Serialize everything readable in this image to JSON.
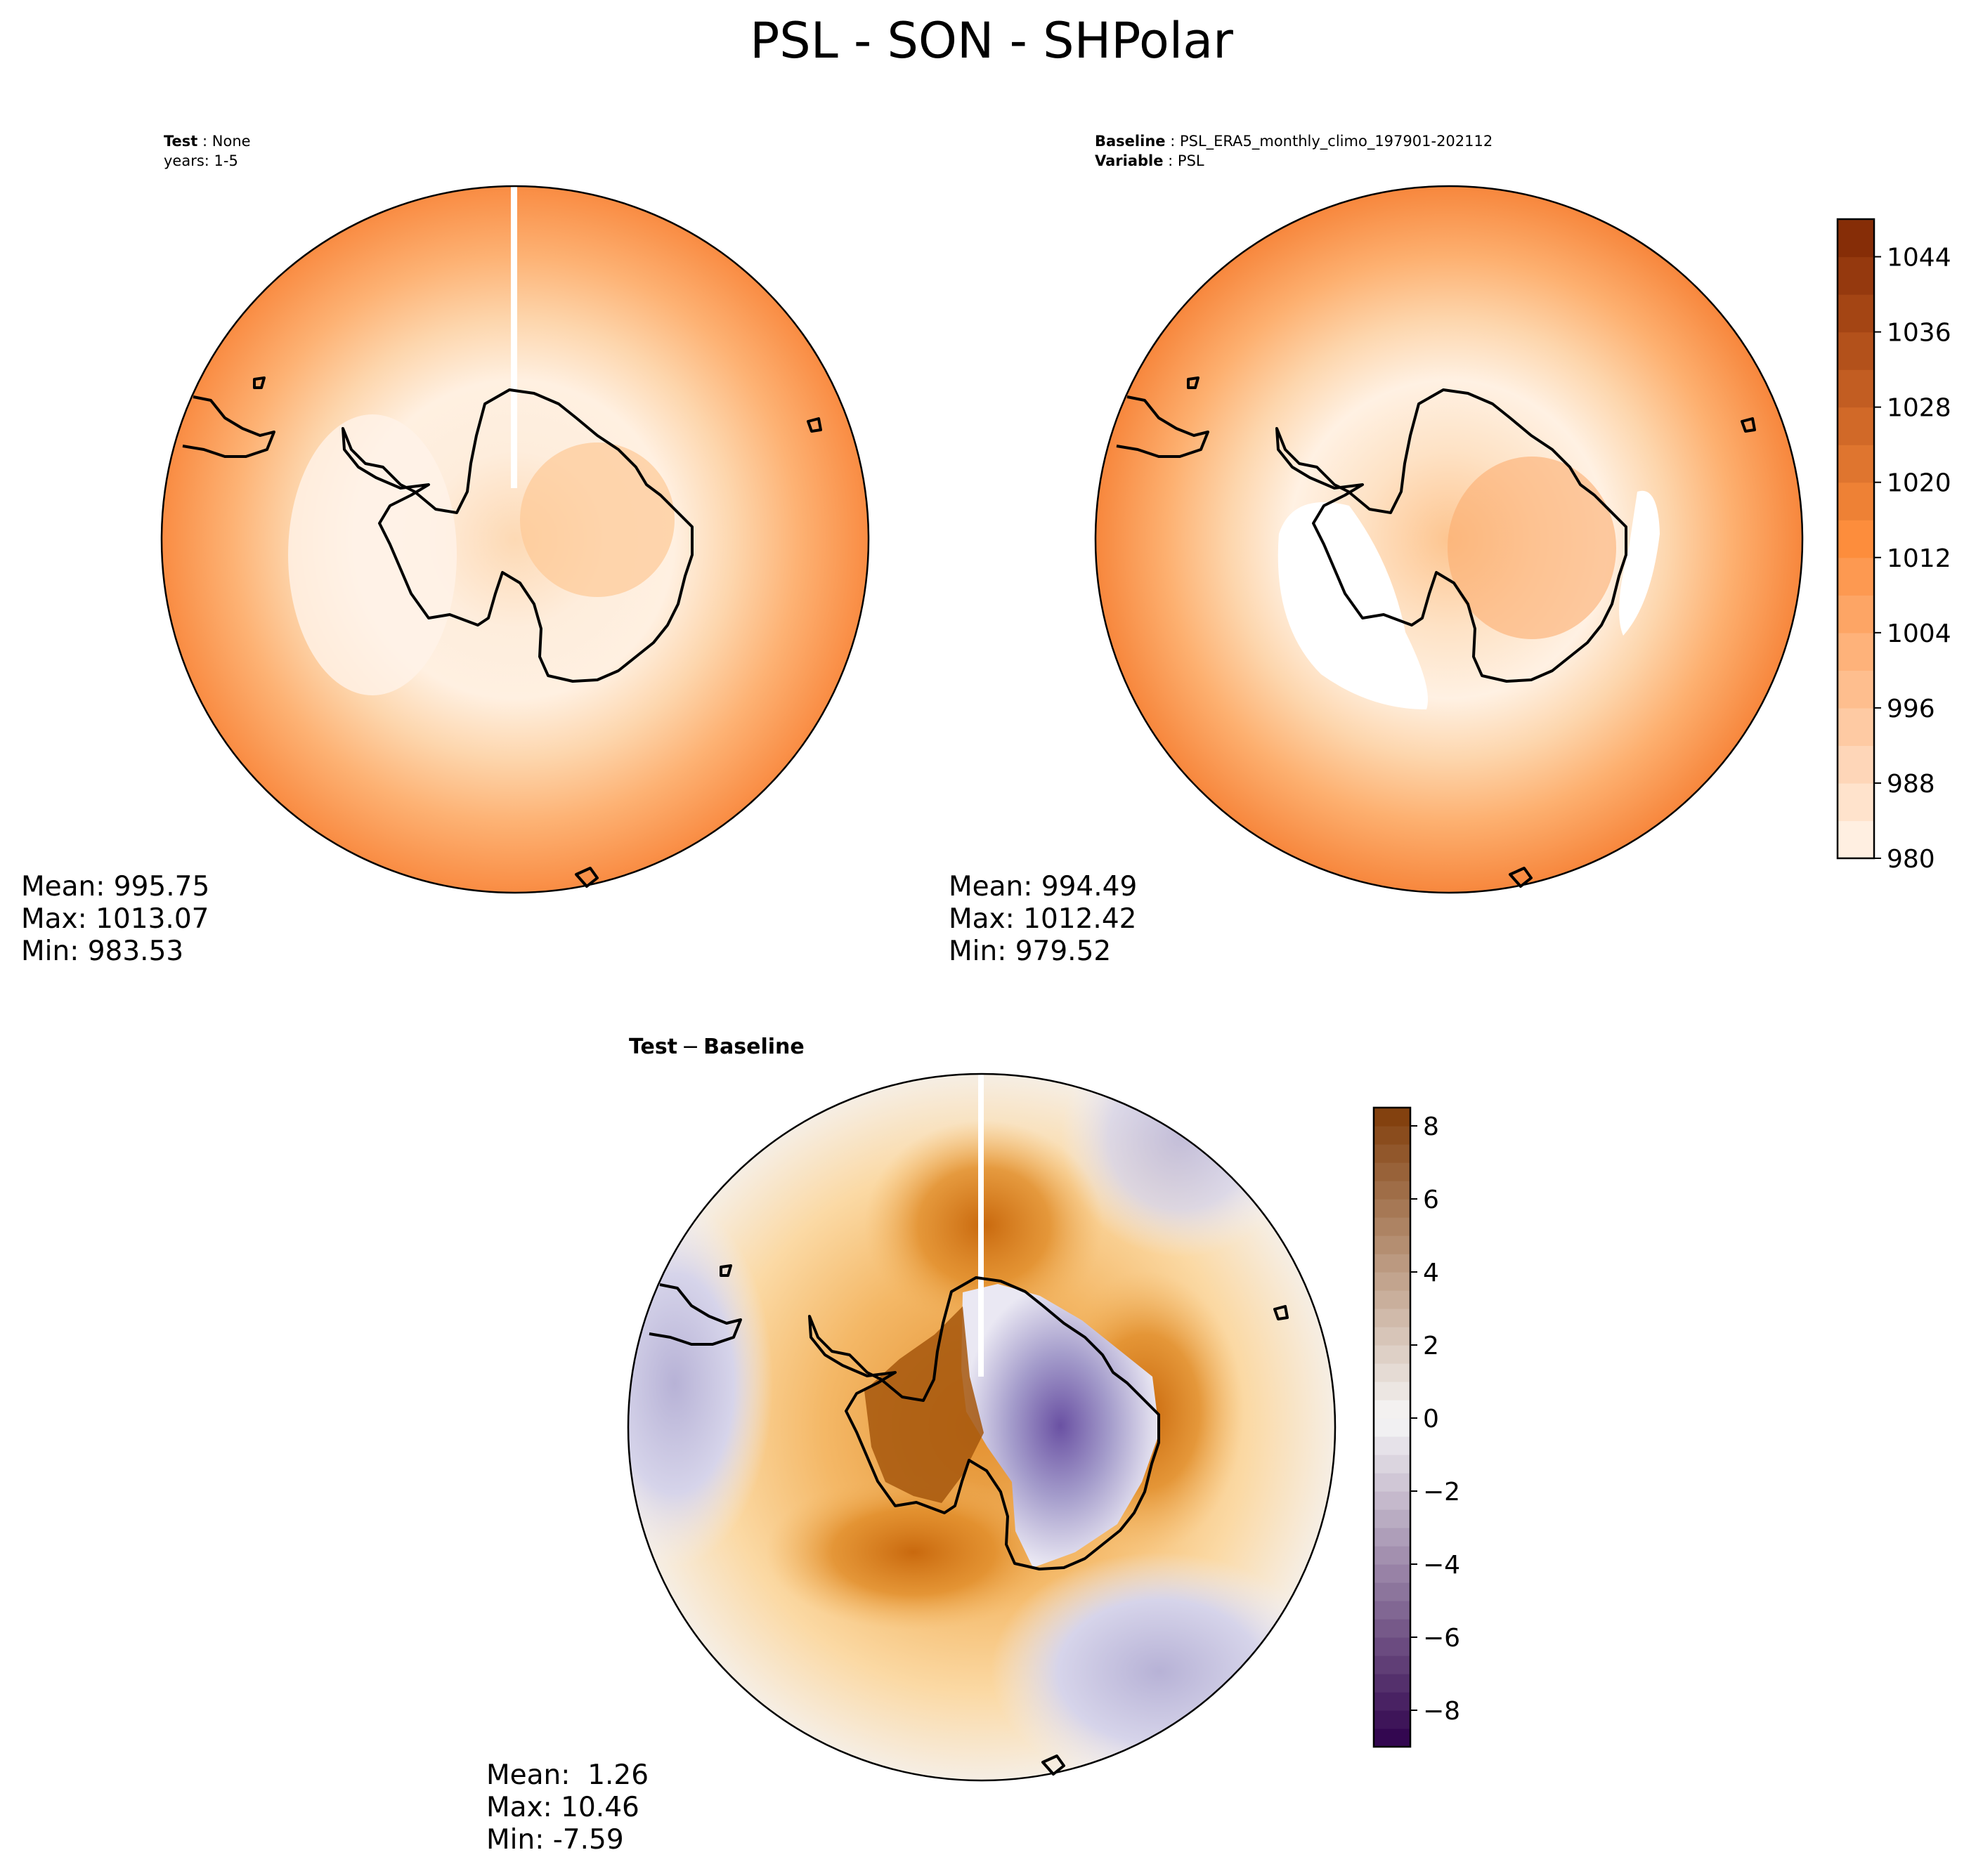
{
  "figure": {
    "title": "PSL - SON - SHPolar"
  },
  "panels": {
    "test": {
      "header_label": "Test",
      "header_value": "None",
      "header_line2": "years: 1-5",
      "mean": "Mean: 995.75",
      "max": "Max: 1013.07",
      "min": "Min: 983.53"
    },
    "baseline": {
      "header_label": "Baseline",
      "header_value": "PSL_ERA5_monthly_climo_197901-202112",
      "header2_label": "Variable",
      "header2_value": "PSL",
      "mean": "Mean: 994.49",
      "max": "Max: 1012.42",
      "min": "Min: 979.52"
    },
    "diff": {
      "header_a": "Test",
      "header_op": "−",
      "header_b": "Baseline",
      "mean": "Mean:  1.26",
      "max": "Max: 10.46",
      "min": "Min: -7.59"
    }
  },
  "colorbars": {
    "main": {
      "min": 980,
      "max": 1048,
      "step": 4,
      "ticks": [
        "980",
        "988",
        "996",
        "1004",
        "1012",
        "1020",
        "1028",
        "1036",
        "1044"
      ],
      "tick_values": [
        980,
        988,
        996,
        1004,
        1012,
        1020,
        1028,
        1036,
        1044
      ],
      "colormap": "Oranges",
      "color_low": "#fff5eb",
      "color_mid": "#fd8d3c",
      "color_high": "#7f2704"
    },
    "diff": {
      "min": -9,
      "max": 8.5,
      "step": 0.5,
      "ticks": [
        "−8",
        "−6",
        "−4",
        "−2",
        "0",
        "2",
        "4",
        "6",
        "8"
      ],
      "tick_values": [
        -8,
        -6,
        -4,
        -2,
        0,
        2,
        4,
        6,
        8
      ],
      "colormap": "PuOr_r",
      "color_neg": "#2d004b",
      "color_zero": "#f7f7f7",
      "color_pos": "#7f3b08"
    }
  }
}
